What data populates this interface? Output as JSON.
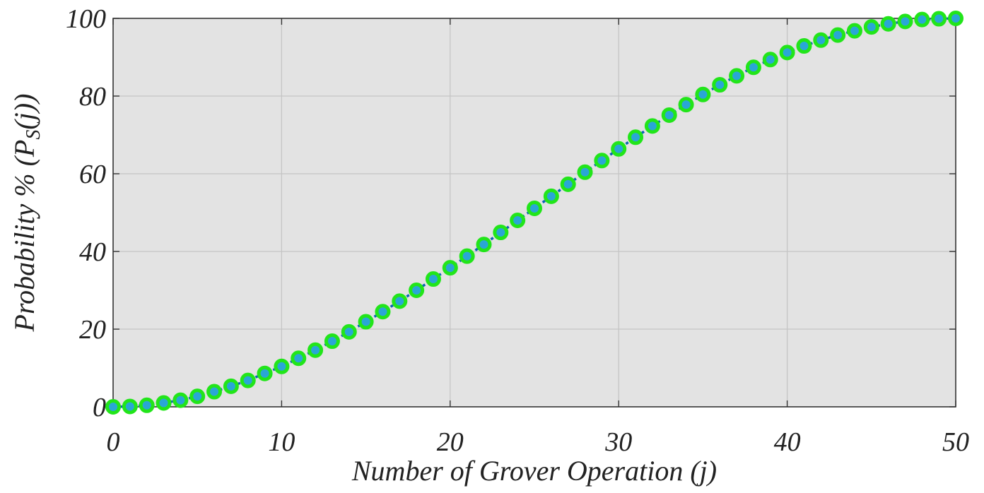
{
  "chart_data": {
    "type": "line",
    "xlabel": "Number of Grover Operation (j)",
    "ylabel": {
      "prefix": "Probability % (P",
      "subscript": "S",
      "suffix": "(j))"
    },
    "xlim": [
      0,
      50
    ],
    "ylim": [
      0,
      100
    ],
    "xticks": [
      0,
      10,
      20,
      30,
      40,
      50
    ],
    "yticks": [
      0,
      20,
      40,
      60,
      80,
      100
    ],
    "grid": true,
    "colors": {
      "plot_background": "#e3e3e3",
      "grid": "#c4c4c4",
      "axis": "#333333",
      "line": "#0b62b4",
      "marker_edge": "#22e51a",
      "marker_face": "#2aa6d6"
    },
    "series": [
      {
        "x": [
          0,
          1,
          2,
          3,
          4,
          5,
          6,
          7,
          8,
          9,
          10,
          11,
          12,
          13,
          14,
          15,
          16,
          17,
          18,
          19,
          20,
          21,
          22,
          23,
          24,
          25,
          26,
          27,
          28,
          29,
          30,
          31,
          32,
          33,
          34,
          35,
          36,
          37,
          38,
          39,
          40,
          41,
          42,
          43,
          44,
          45,
          46,
          47,
          48,
          49,
          50
        ],
        "values": [
          0,
          0.1,
          0.4,
          1.0,
          1.7,
          2.7,
          3.9,
          5.3,
          6.8,
          8.6,
          10.4,
          12.5,
          14.6,
          16.9,
          19.3,
          21.9,
          24.5,
          27.2,
          30.0,
          32.9,
          35.8,
          38.8,
          41.8,
          44.9,
          48.0,
          51.1,
          54.2,
          57.3,
          60.4,
          63.4,
          66.4,
          69.4,
          72.3,
          75.1,
          77.8,
          80.4,
          82.9,
          85.2,
          87.4,
          89.4,
          91.2,
          92.9,
          94.4,
          95.7,
          96.8,
          97.8,
          98.6,
          99.2,
          99.7,
          99.9,
          100
        ]
      }
    ]
  }
}
